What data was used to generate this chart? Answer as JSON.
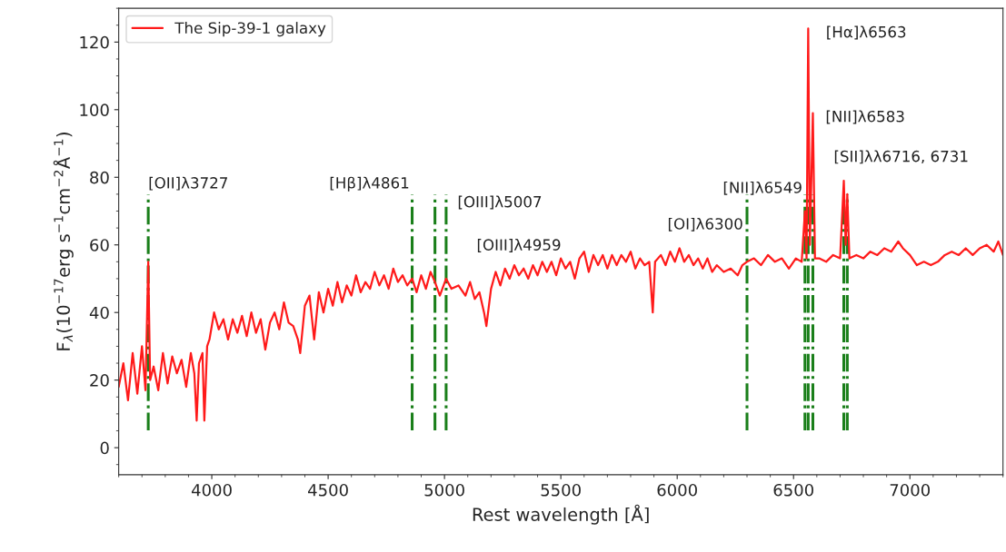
{
  "chart_data": {
    "type": "line",
    "xlabel": "Rest wavelength [Å]",
    "ylabel": "F$_{λ}$(10$^{−17}$erg s$^{−1}$cm$^{−2}$Å$^{−1}$)",
    "x": [
      3600,
      3620,
      3640,
      3660,
      3680,
      3700,
      3715,
      3727,
      3735,
      3750,
      3770,
      3790,
      3810,
      3830,
      3850,
      3870,
      3890,
      3910,
      3925,
      3935,
      3945,
      3960,
      3968,
      3980,
      3990,
      4010,
      4030,
      4050,
      4070,
      4090,
      4110,
      4130,
      4150,
      4170,
      4190,
      4210,
      4230,
      4250,
      4270,
      4290,
      4310,
      4330,
      4350,
      4370,
      4380,
      4400,
      4420,
      4440,
      4460,
      4480,
      4500,
      4520,
      4540,
      4560,
      4580,
      4600,
      4620,
      4640,
      4660,
      4680,
      4700,
      4720,
      4740,
      4760,
      4780,
      4800,
      4820,
      4840,
      4861,
      4880,
      4900,
      4920,
      4940,
      4959,
      4980,
      5007,
      5030,
      5060,
      5090,
      5110,
      5130,
      5150,
      5170,
      5180,
      5200,
      5220,
      5240,
      5260,
      5280,
      5300,
      5320,
      5340,
      5360,
      5380,
      5400,
      5420,
      5440,
      5460,
      5480,
      5500,
      5520,
      5540,
      5560,
      5580,
      5600,
      5620,
      5640,
      5660,
      5680,
      5700,
      5720,
      5740,
      5760,
      5780,
      5800,
      5820,
      5840,
      5860,
      5880,
      5895,
      5905,
      5930,
      5950,
      5970,
      5990,
      6010,
      6030,
      6050,
      6070,
      6090,
      6110,
      6130,
      6150,
      6170,
      6200,
      6230,
      6260,
      6280,
      6300,
      6330,
      6360,
      6390,
      6420,
      6450,
      6480,
      6510,
      6535,
      6549,
      6556,
      6563,
      6570,
      6583,
      6592,
      6610,
      6640,
      6670,
      6700,
      6716,
      6724,
      6731,
      6740,
      6770,
      6800,
      6830,
      6860,
      6890,
      6920,
      6950,
      6970,
      7000,
      7030,
      7060,
      7090,
      7120,
      7150,
      7180,
      7210,
      7240,
      7270,
      7300,
      7330,
      7360,
      7380,
      7400
    ],
    "series": [
      {
        "name": "The Sip-39-1 galaxy",
        "color": "#ff1a1a",
        "values": [
          18,
          25,
          14,
          28,
          16,
          30,
          17,
          55,
          20,
          24,
          17,
          28,
          19,
          27,
          22,
          26,
          18,
          28,
          22,
          8,
          25,
          28,
          8,
          30,
          32,
          40,
          35,
          38,
          32,
          38,
          34,
          39,
          33,
          40,
          34,
          38,
          29,
          37,
          40,
          35,
          43,
          37,
          36,
          32,
          28,
          42,
          45,
          32,
          46,
          40,
          47,
          42,
          49,
          43,
          48,
          45,
          51,
          46,
          49,
          47,
          52,
          48,
          51,
          47,
          53,
          49,
          51,
          48,
          50,
          46,
          51,
          47,
          52,
          49,
          45,
          50,
          47,
          48,
          45,
          49,
          44,
          46,
          40,
          36,
          47,
          52,
          48,
          53,
          50,
          54,
          51,
          53,
          50,
          54,
          51,
          55,
          52,
          55,
          51,
          56,
          53,
          55,
          50,
          56,
          58,
          52,
          57,
          54,
          57,
          53,
          57,
          54,
          57,
          55,
          58,
          53,
          56,
          54,
          55,
          40,
          55,
          57,
          54,
          58,
          55,
          59,
          55,
          57,
          54,
          56,
          53,
          56,
          52,
          54,
          52,
          53,
          51,
          54,
          55,
          56,
          54,
          57,
          55,
          56,
          53,
          56,
          55,
          70,
          56,
          124,
          60,
          99,
          56,
          56,
          55,
          57,
          56,
          79,
          60,
          75,
          56,
          57,
          56,
          58,
          57,
          59,
          58,
          61,
          59,
          57,
          54,
          55,
          54,
          55,
          57,
          58,
          57,
          59,
          57,
          59,
          60,
          58,
          61,
          57
        ]
      }
    ],
    "xlim": [
      3600,
      7400
    ],
    "ylim": [
      -8,
      130
    ],
    "xticks": [
      4000,
      4500,
      5000,
      5500,
      6000,
      6500,
      7000
    ],
    "yticks": [
      0,
      20,
      40,
      60,
      80,
      100,
      120
    ],
    "legend": "top left",
    "grid": false,
    "marker": "none",
    "line_style": "solid",
    "ref_lines": [
      {
        "axis": "x",
        "value": 3727,
        "color": "#1a7f1a",
        "line_style": "dashdot"
      },
      {
        "axis": "x",
        "value": 4861,
        "color": "#1a7f1a",
        "line_style": "dashdot"
      },
      {
        "axis": "x",
        "value": 4959,
        "color": "#1a7f1a",
        "line_style": "dashdot"
      },
      {
        "axis": "x",
        "value": 5007,
        "color": "#1a7f1a",
        "line_style": "dashdot"
      },
      {
        "axis": "x",
        "value": 6300,
        "color": "#1a7f1a",
        "line_style": "dashdot"
      },
      {
        "axis": "x",
        "value": 6549,
        "color": "#1a7f1a",
        "line_style": "dashdot"
      },
      {
        "axis": "x",
        "value": 6563,
        "color": "#1a7f1a",
        "line_style": "dashdot"
      },
      {
        "axis": "x",
        "value": 6583,
        "color": "#1a7f1a",
        "line_style": "dashdot"
      },
      {
        "axis": "x",
        "value": 6716,
        "color": "#1a7f1a",
        "line_style": "dashdot"
      },
      {
        "axis": "x",
        "value": 6731,
        "color": "#1a7f1a",
        "line_style": "dashdot"
      }
    ],
    "annotations": [
      {
        "text": "[OII]λ3727",
        "x": 3727,
        "y": 74.5
      },
      {
        "text": "[Hβ]λ4861",
        "x": 4861,
        "y": 74.5
      },
      {
        "text": "[OIII]λ5007",
        "x": 5007,
        "y": 74.5
      },
      {
        "text": "[OIII]λ4959",
        "x": 4959,
        "y": 61
      },
      {
        "text": "[OI]λ6300",
        "x": 6300,
        "y": 62
      },
      {
        "text": "[NII]λ6549",
        "x": 6549,
        "y": 72
      },
      {
        "text": "[Hα]λ6563",
        "x": 6563,
        "y": 124
      },
      {
        "text": "[NII]λ6583",
        "x": 6583,
        "y": 99
      },
      {
        "text": "[SII]λλ6716, 6731",
        "x": 6716,
        "y": 79
      }
    ]
  }
}
